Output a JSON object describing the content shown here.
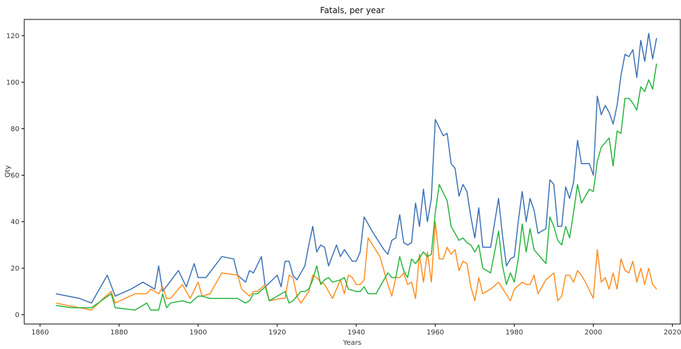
{
  "chart_data": {
    "type": "line",
    "title": "Fatals, per year",
    "xlabel": "Years",
    "ylabel": "Qty",
    "xlim": [
      1856,
      2022
    ],
    "ylim": [
      -4,
      127
    ],
    "xticks": [
      1860,
      1880,
      1900,
      1920,
      1940,
      1960,
      1980,
      2000,
      2020
    ],
    "yticks": [
      0,
      20,
      40,
      60,
      80,
      100,
      120
    ],
    "grid": false,
    "legend": "none",
    "series": [
      {
        "color": "#3a6fb5",
        "points": [
          [
            1864,
            9
          ],
          [
            1870,
            7
          ],
          [
            1873,
            5
          ],
          [
            1877,
            17
          ],
          [
            1879,
            8
          ],
          [
            1883,
            11
          ],
          [
            1886,
            14
          ],
          [
            1889,
            11
          ],
          [
            1890,
            21
          ],
          [
            1891,
            10
          ],
          [
            1895,
            19
          ],
          [
            1897,
            12
          ],
          [
            1899,
            22
          ],
          [
            1900,
            16
          ],
          [
            1902,
            16
          ],
          [
            1906,
            25
          ],
          [
            1909,
            24
          ],
          [
            1910,
            17
          ],
          [
            1912,
            14
          ],
          [
            1913,
            19
          ],
          [
            1914,
            18
          ],
          [
            1916,
            25
          ],
          [
            1917,
            12
          ],
          [
            1920,
            17
          ],
          [
            1921,
            12
          ],
          [
            1922,
            23
          ],
          [
            1923,
            23
          ],
          [
            1924,
            17
          ],
          [
            1925,
            15
          ],
          [
            1927,
            21
          ],
          [
            1928,
            30
          ],
          [
            1929,
            38
          ],
          [
            1930,
            27
          ],
          [
            1931,
            30
          ],
          [
            1932,
            29
          ],
          [
            1933,
            21
          ],
          [
            1935,
            30
          ],
          [
            1936,
            25
          ],
          [
            1937,
            28
          ],
          [
            1939,
            23
          ],
          [
            1940,
            23
          ],
          [
            1941,
            27
          ],
          [
            1942,
            42
          ],
          [
            1944,
            36
          ],
          [
            1947,
            28
          ],
          [
            1948,
            26
          ],
          [
            1949,
            32
          ],
          [
            1950,
            33
          ],
          [
            1951,
            43
          ],
          [
            1952,
            31
          ],
          [
            1953,
            30
          ],
          [
            1954,
            31
          ],
          [
            1955,
            48
          ],
          [
            1956,
            38
          ],
          [
            1957,
            54
          ],
          [
            1958,
            40
          ],
          [
            1959,
            50
          ],
          [
            1960,
            84
          ],
          [
            1962,
            77
          ],
          [
            1963,
            78
          ],
          [
            1964,
            65
          ],
          [
            1965,
            63
          ],
          [
            1966,
            51
          ],
          [
            1967,
            56
          ],
          [
            1968,
            53
          ],
          [
            1969,
            42
          ],
          [
            1970,
            33
          ],
          [
            1971,
            46
          ],
          [
            1972,
            29
          ],
          [
            1974,
            29
          ],
          [
            1976,
            50
          ],
          [
            1977,
            34
          ],
          [
            1978,
            21
          ],
          [
            1979,
            24
          ],
          [
            1980,
            25
          ],
          [
            1981,
            40
          ],
          [
            1982,
            53
          ],
          [
            1983,
            40
          ],
          [
            1984,
            50
          ],
          [
            1985,
            45
          ],
          [
            1986,
            35
          ],
          [
            1988,
            37
          ],
          [
            1989,
            58
          ],
          [
            1990,
            56
          ],
          [
            1991,
            38
          ],
          [
            1992,
            38
          ],
          [
            1993,
            55
          ],
          [
            1994,
            50
          ],
          [
            1995,
            57
          ],
          [
            1996,
            75
          ],
          [
            1997,
            65
          ],
          [
            1999,
            65
          ],
          [
            2000,
            60
          ],
          [
            2001,
            94
          ],
          [
            2002,
            86
          ],
          [
            2003,
            90
          ],
          [
            2004,
            87
          ],
          [
            2005,
            82
          ],
          [
            2006,
            90
          ],
          [
            2007,
            103
          ],
          [
            2008,
            112
          ],
          [
            2009,
            111
          ],
          [
            2010,
            114
          ],
          [
            2011,
            102
          ],
          [
            2012,
            118
          ],
          [
            2013,
            109
          ],
          [
            2014,
            121
          ],
          [
            2015,
            110
          ],
          [
            2016,
            119
          ]
        ]
      },
      {
        "color": "#ff8c1a",
        "points": [
          [
            1864,
            5
          ],
          [
            1867,
            4
          ],
          [
            1873,
            2
          ],
          [
            1876,
            7
          ],
          [
            1878,
            10
          ],
          [
            1879,
            5
          ],
          [
            1884,
            9
          ],
          [
            1887,
            9
          ],
          [
            1888,
            11
          ],
          [
            1890,
            9
          ],
          [
            1891,
            12
          ],
          [
            1892,
            7
          ],
          [
            1893,
            7
          ],
          [
            1896,
            13
          ],
          [
            1898,
            7
          ],
          [
            1900,
            14
          ],
          [
            1901,
            8
          ],
          [
            1903,
            9
          ],
          [
            1906,
            18
          ],
          [
            1910,
            17
          ],
          [
            1911,
            11
          ],
          [
            1913,
            8
          ],
          [
            1914,
            10
          ],
          [
            1915,
            10
          ],
          [
            1917,
            13
          ],
          [
            1918,
            6
          ],
          [
            1921,
            7
          ],
          [
            1922,
            7
          ],
          [
            1923,
            17
          ],
          [
            1924,
            16
          ],
          [
            1925,
            8
          ],
          [
            1926,
            5
          ],
          [
            1928,
            10
          ],
          [
            1929,
            17
          ],
          [
            1930,
            16
          ],
          [
            1931,
            14
          ],
          [
            1932,
            13
          ],
          [
            1934,
            7
          ],
          [
            1936,
            15
          ],
          [
            1937,
            9
          ],
          [
            1938,
            17
          ],
          [
            1939,
            16
          ],
          [
            1940,
            13
          ],
          [
            1941,
            13
          ],
          [
            1942,
            15
          ],
          [
            1943,
            33
          ],
          [
            1946,
            25
          ],
          [
            1948,
            13
          ],
          [
            1949,
            8
          ],
          [
            1950,
            16
          ],
          [
            1951,
            16
          ],
          [
            1952,
            18
          ],
          [
            1953,
            13
          ],
          [
            1954,
            14
          ],
          [
            1955,
            7
          ],
          [
            1956,
            26
          ],
          [
            1957,
            14
          ],
          [
            1958,
            27
          ],
          [
            1959,
            14
          ],
          [
            1960,
            40
          ],
          [
            1961,
            24
          ],
          [
            1962,
            24
          ],
          [
            1963,
            29
          ],
          [
            1964,
            26
          ],
          [
            1965,
            28
          ],
          [
            1966,
            19
          ],
          [
            1967,
            23
          ],
          [
            1968,
            22
          ],
          [
            1969,
            12
          ],
          [
            1970,
            6
          ],
          [
            1971,
            16
          ],
          [
            1972,
            9
          ],
          [
            1974,
            11
          ],
          [
            1976,
            14
          ],
          [
            1979,
            6
          ],
          [
            1980,
            11
          ],
          [
            1982,
            14
          ],
          [
            1983,
            13
          ],
          [
            1984,
            13
          ],
          [
            1985,
            17
          ],
          [
            1986,
            9
          ],
          [
            1988,
            15
          ],
          [
            1990,
            18
          ],
          [
            1991,
            6
          ],
          [
            1992,
            8
          ],
          [
            1993,
            17
          ],
          [
            1994,
            17
          ],
          [
            1995,
            14
          ],
          [
            1996,
            19
          ],
          [
            1997,
            17
          ],
          [
            1998,
            14
          ],
          [
            2000,
            7
          ],
          [
            2001,
            28
          ],
          [
            2002,
            14
          ],
          [
            2003,
            16
          ],
          [
            2004,
            11
          ],
          [
            2005,
            18
          ],
          [
            2006,
            11
          ],
          [
            2007,
            24
          ],
          [
            2008,
            19
          ],
          [
            2009,
            18
          ],
          [
            2010,
            23
          ],
          [
            2011,
            14
          ],
          [
            2012,
            20
          ],
          [
            2013,
            13
          ],
          [
            2014,
            20
          ],
          [
            2015,
            13
          ],
          [
            2016,
            11
          ]
        ]
      },
      {
        "color": "#22b33a",
        "points": [
          [
            1864,
            4
          ],
          [
            1868,
            3
          ],
          [
            1873,
            3
          ],
          [
            1878,
            9
          ],
          [
            1879,
            3
          ],
          [
            1884,
            2
          ],
          [
            1887,
            5
          ],
          [
            1888,
            2
          ],
          [
            1890,
            2
          ],
          [
            1891,
            9
          ],
          [
            1892,
            3
          ],
          [
            1893,
            5
          ],
          [
            1896,
            6
          ],
          [
            1898,
            5
          ],
          [
            1900,
            8
          ],
          [
            1901,
            8
          ],
          [
            1903,
            7
          ],
          [
            1910,
            7
          ],
          [
            1912,
            5
          ],
          [
            1913,
            6
          ],
          [
            1914,
            9
          ],
          [
            1915,
            9
          ],
          [
            1917,
            12
          ],
          [
            1918,
            6
          ],
          [
            1922,
            10
          ],
          [
            1923,
            5
          ],
          [
            1924,
            6
          ],
          [
            1926,
            10
          ],
          [
            1927,
            10
          ],
          [
            1928,
            11
          ],
          [
            1929,
            15
          ],
          [
            1930,
            21
          ],
          [
            1931,
            13
          ],
          [
            1932,
            15
          ],
          [
            1933,
            16
          ],
          [
            1934,
            14
          ],
          [
            1936,
            15
          ],
          [
            1937,
            16
          ],
          [
            1938,
            11
          ],
          [
            1940,
            10
          ],
          [
            1941,
            10
          ],
          [
            1942,
            12
          ],
          [
            1943,
            9
          ],
          [
            1945,
            9
          ],
          [
            1948,
            18
          ],
          [
            1949,
            16
          ],
          [
            1950,
            16
          ],
          [
            1951,
            25
          ],
          [
            1952,
            19
          ],
          [
            1953,
            16
          ],
          [
            1954,
            24
          ],
          [
            1955,
            22
          ],
          [
            1957,
            27
          ],
          [
            1958,
            25
          ],
          [
            1959,
            26
          ],
          [
            1960,
            44
          ],
          [
            1961,
            56
          ],
          [
            1963,
            49
          ],
          [
            1964,
            38
          ],
          [
            1965,
            35
          ],
          [
            1966,
            32
          ],
          [
            1967,
            33
          ],
          [
            1968,
            31
          ],
          [
            1969,
            30
          ],
          [
            1970,
            27
          ],
          [
            1971,
            30
          ],
          [
            1972,
            20
          ],
          [
            1974,
            18
          ],
          [
            1976,
            36
          ],
          [
            1977,
            21
          ],
          [
            1978,
            13
          ],
          [
            1979,
            18
          ],
          [
            1980,
            14
          ],
          [
            1981,
            24
          ],
          [
            1982,
            39
          ],
          [
            1983,
            27
          ],
          [
            1984,
            37
          ],
          [
            1985,
            28
          ],
          [
            1988,
            22
          ],
          [
            1989,
            42
          ],
          [
            1990,
            38
          ],
          [
            1991,
            32
          ],
          [
            1992,
            30
          ],
          [
            1993,
            38
          ],
          [
            1994,
            33
          ],
          [
            1995,
            44
          ],
          [
            1996,
            56
          ],
          [
            1997,
            48
          ],
          [
            1999,
            54
          ],
          [
            2000,
            53
          ],
          [
            2001,
            66
          ],
          [
            2002,
            72
          ],
          [
            2004,
            76
          ],
          [
            2005,
            64
          ],
          [
            2006,
            79
          ],
          [
            2007,
            78
          ],
          [
            2008,
            93
          ],
          [
            2009,
            93
          ],
          [
            2010,
            91
          ],
          [
            2011,
            88
          ],
          [
            2012,
            98
          ],
          [
            2013,
            96
          ],
          [
            2014,
            101
          ],
          [
            2015,
            97
          ],
          [
            2016,
            108
          ]
        ]
      }
    ]
  }
}
